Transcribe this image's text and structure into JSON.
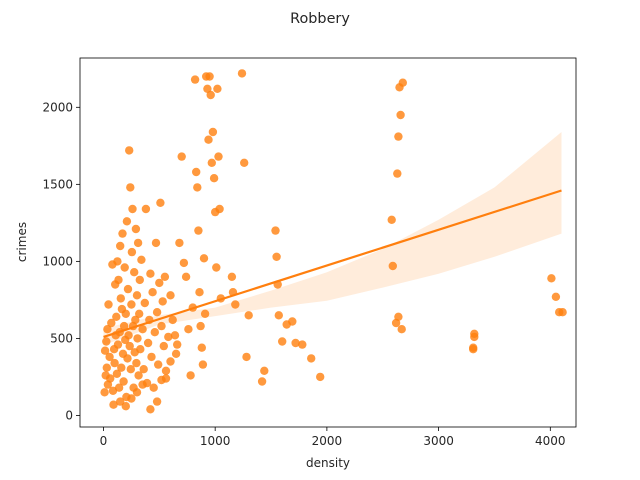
{
  "chart_data": {
    "type": "scatter",
    "title": "Robbery",
    "xlabel": "density",
    "ylabel": "crimes",
    "xlim": [
      -210,
      4230
    ],
    "ylim": [
      -75,
      2320
    ],
    "xticks": [
      0,
      1000,
      2000,
      3000,
      4000
    ],
    "yticks": [
      0,
      500,
      1000,
      1500,
      2000
    ],
    "grid": false,
    "legend": "none",
    "colors": {
      "points": "#ff7f0e",
      "fit_line": "#ff7f0e",
      "ci_band": "#ff7f0e"
    },
    "regression": {
      "x": [
        0,
        4100
      ],
      "y": [
        510,
        1460
      ],
      "ci_x": [
        0,
        500,
        1000,
        1500,
        2000,
        2500,
        3000,
        3500,
        4100
      ],
      "ci_lower": [
        455,
        590,
        645,
        700,
        745,
        830,
        920,
        1030,
        1180
      ],
      "ci_upper": [
        565,
        650,
        700,
        810,
        930,
        1080,
        1270,
        1480,
        1840
      ]
    },
    "points": [
      [
        20,
        260
      ],
      [
        30,
        310
      ],
      [
        40,
        200
      ],
      [
        15,
        420
      ],
      [
        25,
        480
      ],
      [
        10,
        150
      ],
      [
        35,
        560
      ],
      [
        45,
        720
      ],
      [
        55,
        380
      ],
      [
        60,
        240
      ],
      [
        70,
        600
      ],
      [
        80,
        980
      ],
      [
        85,
        160
      ],
      [
        95,
        430
      ],
      [
        100,
        340
      ],
      [
        105,
        850
      ],
      [
        110,
        520
      ],
      [
        115,
        640
      ],
      [
        120,
        270
      ],
      [
        125,
        1000
      ],
      [
        130,
        460
      ],
      [
        135,
        880
      ],
      [
        140,
        180
      ],
      [
        145,
        540
      ],
      [
        150,
        1100
      ],
      [
        155,
        760
      ],
      [
        160,
        310
      ],
      [
        165,
        690
      ],
      [
        170,
        1180
      ],
      [
        175,
        400
      ],
      [
        180,
        220
      ],
      [
        185,
        580
      ],
      [
        190,
        960
      ],
      [
        195,
        490
      ],
      [
        200,
        660
      ],
      [
        205,
        120
      ],
      [
        210,
        1260
      ],
      [
        215,
        370
      ],
      [
        220,
        820
      ],
      [
        225,
        520
      ],
      [
        230,
        1720
      ],
      [
        235,
        450
      ],
      [
        240,
        1480
      ],
      [
        245,
        300
      ],
      [
        250,
        720
      ],
      [
        255,
        1060
      ],
      [
        260,
        1340
      ],
      [
        265,
        580
      ],
      [
        270,
        180
      ],
      [
        275,
        930
      ],
      [
        280,
        410
      ],
      [
        285,
        620
      ],
      [
        290,
        1210
      ],
      [
        295,
        340
      ],
      [
        300,
        780
      ],
      [
        305,
        500
      ],
      [
        310,
        1120
      ],
      [
        315,
        260
      ],
      [
        320,
        660
      ],
      [
        325,
        880
      ],
      [
        330,
        430
      ],
      [
        340,
        1010
      ],
      [
        350,
        560
      ],
      [
        360,
        300
      ],
      [
        370,
        730
      ],
      [
        380,
        1340
      ],
      [
        390,
        210
      ],
      [
        400,
        470
      ],
      [
        410,
        620
      ],
      [
        420,
        920
      ],
      [
        430,
        380
      ],
      [
        440,
        800
      ],
      [
        450,
        180
      ],
      [
        460,
        540
      ],
      [
        470,
        1120
      ],
      [
        480,
        670
      ],
      [
        490,
        330
      ],
      [
        500,
        860
      ],
      [
        510,
        1380
      ],
      [
        520,
        580
      ],
      [
        530,
        740
      ],
      [
        540,
        450
      ],
      [
        550,
        900
      ],
      [
        560,
        240
      ],
      [
        580,
        510
      ],
      [
        600,
        780
      ],
      [
        620,
        620
      ],
      [
        640,
        520
      ],
      [
        660,
        460
      ],
      [
        680,
        1120
      ],
      [
        700,
        1680
      ],
      [
        720,
        990
      ],
      [
        740,
        900
      ],
      [
        760,
        560
      ],
      [
        780,
        260
      ],
      [
        800,
        700
      ],
      [
        820,
        2180
      ],
      [
        830,
        1580
      ],
      [
        840,
        1480
      ],
      [
        850,
        1200
      ],
      [
        860,
        800
      ],
      [
        870,
        580
      ],
      [
        880,
        440
      ],
      [
        890,
        330
      ],
      [
        900,
        1020
      ],
      [
        910,
        660
      ],
      [
        920,
        2200
      ],
      [
        930,
        2120
      ],
      [
        940,
        1790
      ],
      [
        950,
        2200
      ],
      [
        960,
        2080
      ],
      [
        970,
        1640
      ],
      [
        980,
        1840
      ],
      [
        990,
        1540
      ],
      [
        1000,
        1320
      ],
      [
        1010,
        960
      ],
      [
        1020,
        2120
      ],
      [
        1030,
        1680
      ],
      [
        1040,
        1340
      ],
      [
        1050,
        760
      ],
      [
        1150,
        900
      ],
      [
        1160,
        800
      ],
      [
        1180,
        720
      ],
      [
        1240,
        2220
      ],
      [
        1260,
        1640
      ],
      [
        1280,
        380
      ],
      [
        1300,
        650
      ],
      [
        1420,
        220
      ],
      [
        1440,
        290
      ],
      [
        1540,
        1200
      ],
      [
        1550,
        1030
      ],
      [
        1560,
        850
      ],
      [
        1570,
        650
      ],
      [
        1600,
        480
      ],
      [
        1640,
        590
      ],
      [
        1690,
        610
      ],
      [
        1720,
        470
      ],
      [
        1780,
        460
      ],
      [
        1860,
        370
      ],
      [
        1940,
        250
      ],
      [
        2580,
        1270
      ],
      [
        2590,
        970
      ],
      [
        2620,
        600
      ],
      [
        2630,
        1570
      ],
      [
        2640,
        1810
      ],
      [
        2650,
        2130
      ],
      [
        2660,
        1950
      ],
      [
        2670,
        560
      ],
      [
        2680,
        2160
      ],
      [
        2640,
        640
      ],
      [
        3310,
        440
      ],
      [
        3320,
        530
      ],
      [
        3320,
        510
      ],
      [
        3310,
        430
      ],
      [
        4010,
        890
      ],
      [
        4050,
        770
      ],
      [
        4080,
        670
      ],
      [
        4110,
        670
      ],
      [
        90,
        70
      ],
      [
        150,
        90
      ],
      [
        200,
        60
      ],
      [
        250,
        110
      ],
      [
        300,
        150
      ],
      [
        350,
        200
      ],
      [
        420,
        40
      ],
      [
        480,
        90
      ],
      [
        520,
        230
      ],
      [
        560,
        290
      ],
      [
        600,
        350
      ],
      [
        650,
        400
      ]
    ]
  }
}
